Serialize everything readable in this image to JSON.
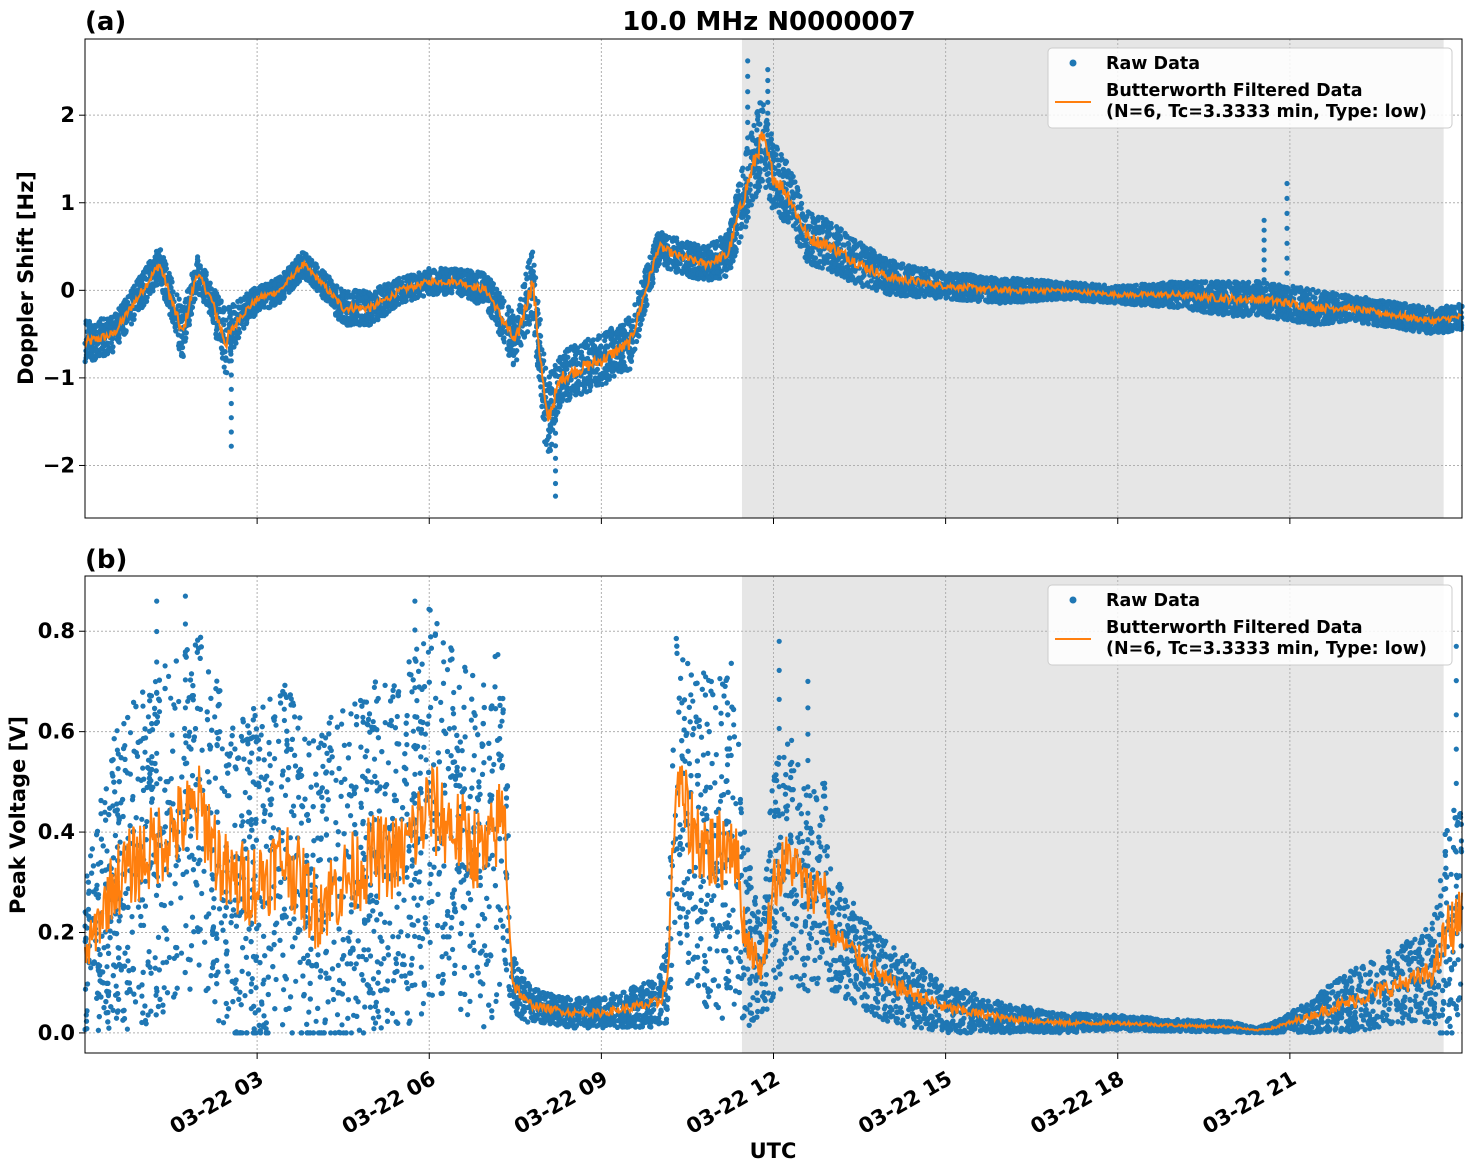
{
  "figure": {
    "title": "10.0 MHz N0000007",
    "xlabel": "UTC"
  },
  "legend": {
    "raw_label": "Raw Data",
    "filtered_label_line1": "Butterworth Filtered Data",
    "filtered_label_line2": "(N=6, Tc=3.3333 min, Type: low)"
  },
  "colors": {
    "raw": "#1f77b4",
    "filtered": "#ff7f0e",
    "shade": "#e6e6e6"
  },
  "x_ticks": [
    "03-22 03",
    "03-22 06",
    "03-22 09",
    "03-22 12",
    "03-22 15",
    "03-22 18",
    "03-22 21"
  ],
  "chart_data": [
    {
      "type": "scatter",
      "panel_label": "(a)",
      "ylabel": "Doppler Shift [Hz]",
      "ylim": [
        -2.6,
        2.87
      ],
      "xlim_hours": [
        0.0,
        24.0
      ],
      "x_unit": "hours UTC on 03-22",
      "y_ticks": [
        "2",
        "1",
        "0",
        "−1",
        "−2"
      ],
      "y_tick_values": [
        2,
        1,
        0,
        -1,
        -2
      ],
      "shaded_interval_hours": [
        11.45,
        23.68
      ],
      "grid": true,
      "legend_placement": "top-right",
      "series": [
        {
          "name": "Butterworth Filtered Data",
          "kind": "line",
          "x": [
            0.0,
            0.5,
            1.0,
            1.3,
            1.7,
            1.95,
            2.2,
            2.45,
            2.7,
            3.0,
            3.4,
            3.8,
            4.1,
            4.5,
            5.0,
            5.5,
            6.0,
            6.5,
            7.0,
            7.5,
            7.8,
            8.05,
            8.3,
            8.6,
            9.0,
            9.5,
            10.0,
            10.3,
            10.8,
            11.2,
            11.45,
            11.8,
            12.0,
            12.25,
            12.6,
            13.0,
            13.5,
            14.0,
            15.0,
            16.0,
            17.0,
            18.0,
            19.0,
            20.0,
            20.5,
            21.0,
            21.5,
            22.0,
            22.5,
            23.0,
            23.5,
            24.0
          ],
          "y": [
            -0.6,
            -0.5,
            0.0,
            0.3,
            -0.5,
            0.2,
            -0.1,
            -0.6,
            -0.3,
            -0.1,
            0.0,
            0.3,
            0.1,
            -0.2,
            -0.2,
            0.0,
            0.1,
            0.1,
            0.0,
            -0.6,
            0.1,
            -1.5,
            -1.0,
            -0.9,
            -0.8,
            -0.6,
            0.5,
            0.4,
            0.3,
            0.4,
            1.0,
            1.75,
            1.3,
            1.1,
            0.6,
            0.5,
            0.3,
            0.15,
            0.05,
            0.0,
            0.0,
            -0.05,
            -0.05,
            -0.1,
            -0.1,
            -0.15,
            -0.2,
            -0.2,
            -0.25,
            -0.3,
            -0.35,
            -0.3
          ]
        },
        {
          "name": "Raw Data",
          "kind": "points",
          "note_values": "band around filtered curve",
          "spread": [
            0.25,
            0.2,
            0.2,
            0.2,
            0.3,
            0.2,
            0.2,
            0.4,
            0.2,
            0.15,
            0.15,
            0.15,
            0.15,
            0.2,
            0.2,
            0.15,
            0.15,
            0.15,
            0.2,
            0.3,
            0.4,
            0.5,
            0.3,
            0.3,
            0.3,
            0.3,
            0.2,
            0.2,
            0.2,
            0.25,
            0.4,
            0.5,
            0.4,
            0.35,
            0.3,
            0.3,
            0.25,
            0.2,
            0.15,
            0.15,
            0.1,
            0.1,
            0.15,
            0.2,
            0.2,
            0.2,
            0.2,
            0.15,
            0.15,
            0.15,
            0.15,
            0.15
          ]
        }
      ],
      "spikes": [
        {
          "x": 11.55,
          "y": 2.62
        },
        {
          "x": 11.9,
          "y": 2.52
        },
        {
          "x": 20.95,
          "y": 1.22
        },
        {
          "x": 20.55,
          "y": 0.8
        },
        {
          "x": 8.2,
          "y": -2.35
        },
        {
          "x": 2.55,
          "y": -1.78
        }
      ]
    },
    {
      "type": "scatter",
      "panel_label": "(b)",
      "ylabel": "Peak Voltage [V]",
      "ylim": [
        -0.04,
        0.91
      ],
      "xlim_hours": [
        0.0,
        24.0
      ],
      "x_unit": "hours UTC on 03-22",
      "y_ticks": [
        "0.8",
        "0.6",
        "0.4",
        "0.2",
        "0.0"
      ],
      "y_tick_values": [
        0.8,
        0.6,
        0.4,
        0.2,
        0.0
      ],
      "shaded_interval_hours": [
        11.45,
        23.68
      ],
      "grid": true,
      "legend_placement": "top-right",
      "series": [
        {
          "name": "Butterworth Filtered Data",
          "kind": "line",
          "x": [
            0.0,
            0.5,
            1.0,
            1.5,
            2.0,
            2.5,
            3.0,
            3.5,
            4.0,
            4.5,
            5.0,
            5.5,
            6.0,
            6.5,
            7.0,
            7.3,
            7.45,
            7.7,
            8.0,
            8.5,
            9.0,
            9.5,
            10.0,
            10.15,
            10.3,
            10.6,
            11.0,
            11.3,
            11.5,
            11.8,
            12.0,
            12.3,
            12.6,
            12.9,
            13.0,
            13.5,
            14.0,
            15.0,
            16.0,
            17.0,
            18.0,
            19.0,
            20.0,
            20.4,
            20.7,
            21.0,
            21.5,
            22.0,
            22.5,
            23.0,
            23.5,
            23.75,
            24.0
          ],
          "y": [
            0.15,
            0.3,
            0.35,
            0.4,
            0.45,
            0.3,
            0.3,
            0.35,
            0.25,
            0.3,
            0.35,
            0.35,
            0.45,
            0.4,
            0.35,
            0.45,
            0.1,
            0.06,
            0.05,
            0.04,
            0.04,
            0.05,
            0.06,
            0.1,
            0.5,
            0.4,
            0.35,
            0.4,
            0.2,
            0.12,
            0.3,
            0.35,
            0.28,
            0.3,
            0.2,
            0.15,
            0.1,
            0.05,
            0.03,
            0.02,
            0.02,
            0.015,
            0.012,
            0.005,
            0.01,
            0.02,
            0.04,
            0.06,
            0.08,
            0.1,
            0.12,
            0.2,
            0.24
          ]
        },
        {
          "name": "Raw Data",
          "kind": "points",
          "note_values": "band around filtered curve",
          "spread": [
            0.15,
            0.3,
            0.35,
            0.35,
            0.35,
            0.35,
            0.35,
            0.35,
            0.35,
            0.35,
            0.35,
            0.35,
            0.4,
            0.35,
            0.35,
            0.35,
            0.06,
            0.04,
            0.03,
            0.03,
            0.03,
            0.04,
            0.05,
            0.08,
            0.3,
            0.35,
            0.35,
            0.35,
            0.2,
            0.08,
            0.25,
            0.25,
            0.2,
            0.2,
            0.12,
            0.1,
            0.08,
            0.05,
            0.03,
            0.02,
            0.015,
            0.012,
            0.01,
            0.005,
            0.01,
            0.02,
            0.04,
            0.06,
            0.07,
            0.08,
            0.1,
            0.25,
            0.2
          ]
        }
      ],
      "spikes": [
        {
          "x": 1.25,
          "y": 0.86
        },
        {
          "x": 1.75,
          "y": 0.87
        },
        {
          "x": 5.75,
          "y": 0.86
        },
        {
          "x": 12.1,
          "y": 0.78
        },
        {
          "x": 12.6,
          "y": 0.7
        },
        {
          "x": 23.9,
          "y": 0.77
        }
      ]
    }
  ]
}
